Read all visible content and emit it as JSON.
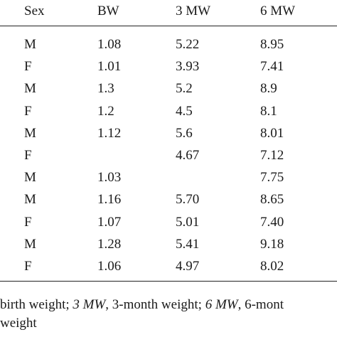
{
  "table": {
    "headers": {
      "sex": "Sex",
      "bw": "BW",
      "mw3": "3 MW",
      "mw6": "6 MW"
    },
    "rows": [
      {
        "sex": "M",
        "bw": "1.08",
        "mw3": "5.22",
        "mw6": "8.95"
      },
      {
        "sex": "F",
        "bw": "1.01",
        "mw3": "3.93",
        "mw6": "7.41"
      },
      {
        "sex": "M",
        "bw": "1.3",
        "mw3": "5.2",
        "mw6": "8.9"
      },
      {
        "sex": "F",
        "bw": "1.2",
        "mw3": "4.5",
        "mw6": "8.1"
      },
      {
        "sex": "M",
        "bw": "1.12",
        "mw3": "5.6",
        "mw6": "8.01"
      },
      {
        "sex": "F",
        "bw": "",
        "mw3": "4.67",
        "mw6": "7.12"
      },
      {
        "sex": "M",
        "bw": "1.03",
        "mw3": "",
        "mw6": "7.75"
      },
      {
        "sex": "M",
        "bw": "1.16",
        "mw3": "5.70",
        "mw6": "8.65"
      },
      {
        "sex": "F",
        "bw": "1.07",
        "mw3": "5.01",
        "mw6": "7.40"
      },
      {
        "sex": "M",
        "bw": "1.28",
        "mw3": "5.41",
        "mw6": "9.18"
      },
      {
        "sex": "F",
        "bw": "1.06",
        "mw3": "4.97",
        "mw6": "8.02"
      }
    ]
  },
  "footnote": {
    "line1": [
      {
        "text": "birth weight; ",
        "italic": false
      },
      {
        "text": "3 MW",
        "italic": true
      },
      {
        "text": ", 3-month weight; ",
        "italic": false
      },
      {
        "text": "6 MW",
        "italic": true
      },
      {
        "text": ", 6-mont",
        "italic": false
      }
    ],
    "line2": [
      {
        "text": " weight",
        "italic": false
      }
    ]
  }
}
